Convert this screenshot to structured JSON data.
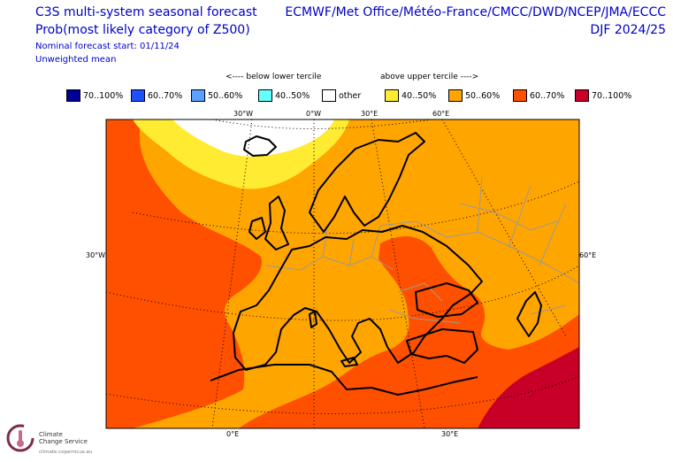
{
  "header": {
    "title_line1": "C3S multi-system seasonal forecast",
    "title_line2": "Prob(most likely category of Z500)",
    "meta_line1": "Nominal forecast start: 01/11/24",
    "meta_line2": "Unweighted mean",
    "centres": "ECMWF/Met Office/Météo-France/CMCC/DWD/NCEP/JMA/ECCC",
    "season": "DJF 2024/25"
  },
  "legend": {
    "below_label": "<---- below lower tercile",
    "above_label": "above upper tercile ---->",
    "items": [
      {
        "label": "70..100%",
        "color": "#000096"
      },
      {
        "label": "60..70%",
        "color": "#1e50ff"
      },
      {
        "label": "50..60%",
        "color": "#5aa0ff"
      },
      {
        "label": "40..50%",
        "color": "#64ffff"
      },
      {
        "label": "other",
        "color": "#ffffff"
      },
      {
        "label": "40..50%",
        "color": "#ffeb32"
      },
      {
        "label": "50..60%",
        "color": "#ffa500"
      },
      {
        "label": "60..70%",
        "color": "#ff5000"
      },
      {
        "label": "70..100%",
        "color": "#c80028"
      }
    ]
  },
  "map": {
    "region": "Europe",
    "top_ticks": [
      "30°W",
      "0°W",
      "30°E",
      "60°E"
    ],
    "left_tick": "30°W",
    "right_tick": "60°E",
    "bottom_ticks": [
      "0°E",
      "30°E"
    ],
    "category_colors": {
      "other": "#ffffff",
      "above_40_50": "#ffeb32",
      "above_50_60": "#ffa500",
      "above_60_70": "#ff5000",
      "above_70_100": "#c80028"
    }
  },
  "logo": {
    "line1": "Climate",
    "line2": "Change Service",
    "line3": "climate.copernicus.eu",
    "icon": "copernicus-thermometer-icon"
  }
}
